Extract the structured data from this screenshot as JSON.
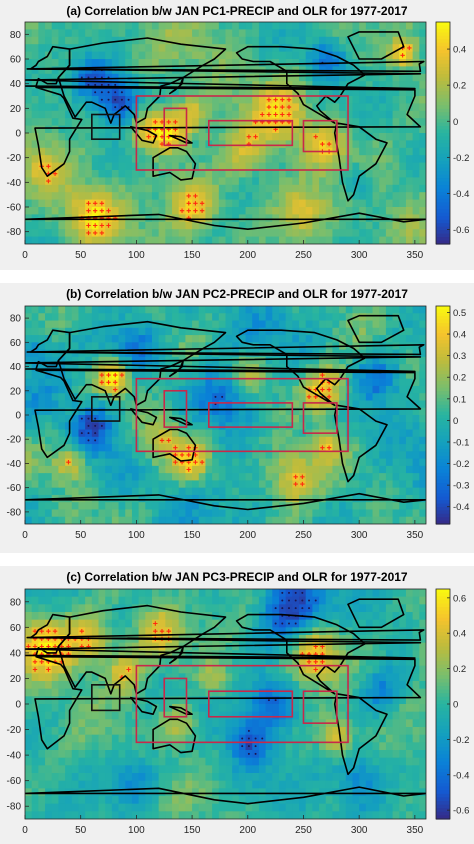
{
  "chart_data": [
    {
      "type": "heatmap",
      "title": "(a) Correlation b/w JAN PC1-PRECIP and OLR for 1977-2017",
      "x_ticks": [
        0,
        50,
        100,
        150,
        200,
        250,
        300,
        350
      ],
      "y_ticks": [
        80,
        60,
        40,
        20,
        0,
        -20,
        -40,
        -60,
        -80
      ],
      "xlim": [
        0,
        360
      ],
      "ylim": [
        -90,
        90
      ],
      "colorbar": {
        "min": -0.68,
        "max": 0.55,
        "ticks": [
          0.4,
          0.2,
          0,
          -0.2,
          -0.4,
          -0.6
        ]
      },
      "seed": 11,
      "anomalies": [
        {
          "lon": 85,
          "lat": 25,
          "val": -0.65,
          "r": 14
        },
        {
          "lon": 60,
          "lat": 45,
          "val": -0.45,
          "r": 12
        },
        {
          "lon": 110,
          "lat": 5,
          "val": 0.5,
          "r": 12
        },
        {
          "lon": 130,
          "lat": 0,
          "val": 0.45,
          "r": 10
        },
        {
          "lon": 150,
          "lat": 15,
          "val": 0.35,
          "r": 10
        },
        {
          "lon": 230,
          "lat": 15,
          "val": 0.35,
          "r": 15
        },
        {
          "lon": 200,
          "lat": -15,
          "val": 0.3,
          "r": 15
        },
        {
          "lon": 270,
          "lat": -10,
          "val": 0.3,
          "r": 12
        },
        {
          "lon": 150,
          "lat": -60,
          "val": 0.45,
          "r": 15
        },
        {
          "lon": 60,
          "lat": -65,
          "val": 0.4,
          "r": 15
        },
        {
          "lon": 250,
          "lat": -65,
          "val": 0.35,
          "r": 15
        },
        {
          "lon": 300,
          "lat": -40,
          "val": -0.3,
          "r": 12
        },
        {
          "lon": 270,
          "lat": 60,
          "val": -0.4,
          "r": 12
        },
        {
          "lon": 20,
          "lat": -30,
          "val": 0.25,
          "r": 12
        },
        {
          "lon": 340,
          "lat": 65,
          "val": 0.5,
          "r": 8
        }
      ]
    },
    {
      "type": "heatmap",
      "title": "(b) Correlation b/w JAN PC2-PRECIP and OLR for 1977-2017",
      "x_ticks": [
        0,
        50,
        100,
        150,
        200,
        250,
        300,
        350
      ],
      "y_ticks": [
        80,
        60,
        40,
        20,
        0,
        -20,
        -40,
        -60,
        -80
      ],
      "xlim": [
        0,
        360
      ],
      "ylim": [
        -90,
        90
      ],
      "colorbar": {
        "min": -0.48,
        "max": 0.53,
        "ticks": [
          0.5,
          0.4,
          0.3,
          0.2,
          0.1,
          0,
          -0.1,
          -0.2,
          -0.3,
          -0.4
        ]
      },
      "seed": 23,
      "anomalies": [
        {
          "lon": 80,
          "lat": 30,
          "val": 0.5,
          "r": 10
        },
        {
          "lon": 270,
          "lat": 20,
          "val": 0.5,
          "r": 15
        },
        {
          "lon": 120,
          "lat": -20,
          "val": 0.35,
          "r": 15
        },
        {
          "lon": 150,
          "lat": -40,
          "val": 0.35,
          "r": 12
        },
        {
          "lon": 240,
          "lat": -50,
          "val": 0.35,
          "r": 15
        },
        {
          "lon": 270,
          "lat": -25,
          "val": 0.3,
          "r": 10
        },
        {
          "lon": 200,
          "lat": 35,
          "val": 0.25,
          "r": 12
        },
        {
          "lon": 180,
          "lat": 10,
          "val": -0.35,
          "r": 18
        },
        {
          "lon": 60,
          "lat": -10,
          "val": -0.35,
          "r": 12
        },
        {
          "lon": 100,
          "lat": 55,
          "val": -0.3,
          "r": 15
        },
        {
          "lon": 40,
          "lat": -40,
          "val": 0.35,
          "r": 10
        },
        {
          "lon": 320,
          "lat": 30,
          "val": -0.25,
          "r": 12
        },
        {
          "lon": 10,
          "lat": 55,
          "val": -0.2,
          "r": 10
        }
      ]
    },
    {
      "type": "heatmap",
      "title": "(c) Correlation b/w JAN PC3-PRECIP and OLR for 1977-2017",
      "x_ticks": [
        0,
        50,
        100,
        150,
        200,
        250,
        300,
        350
      ],
      "y_ticks": [
        80,
        60,
        40,
        20,
        0,
        -20,
        -40,
        -60,
        -80
      ],
      "xlim": [
        0,
        360
      ],
      "ylim": [
        -90,
        90
      ],
      "colorbar": {
        "min": -0.65,
        "max": 0.65,
        "ticks": [
          0.6,
          0.4,
          0.2,
          0,
          -0.2,
          -0.4,
          -0.6
        ]
      },
      "seed": 37,
      "anomalies": [
        {
          "lon": 20,
          "lat": 45,
          "val": 0.55,
          "r": 18
        },
        {
          "lon": 60,
          "lat": 50,
          "val": 0.5,
          "r": 14
        },
        {
          "lon": 120,
          "lat": 55,
          "val": 0.45,
          "r": 15
        },
        {
          "lon": 90,
          "lat": 25,
          "val": 0.45,
          "r": 12
        },
        {
          "lon": 260,
          "lat": 40,
          "val": 0.55,
          "r": 15
        },
        {
          "lon": 240,
          "lat": 75,
          "val": -0.6,
          "r": 20
        },
        {
          "lon": 220,
          "lat": 0,
          "val": -0.5,
          "r": 15
        },
        {
          "lon": 140,
          "lat": -15,
          "val": 0.4,
          "r": 12
        },
        {
          "lon": 200,
          "lat": -30,
          "val": -0.45,
          "r": 12
        },
        {
          "lon": 280,
          "lat": -25,
          "val": 0.45,
          "r": 10
        },
        {
          "lon": 300,
          "lat": -60,
          "val": -0.35,
          "r": 15
        },
        {
          "lon": 100,
          "lat": -60,
          "val": -0.3,
          "r": 15
        },
        {
          "lon": 170,
          "lat": 20,
          "val": 0.3,
          "r": 10
        },
        {
          "lon": 320,
          "lat": 10,
          "val": -0.3,
          "r": 12
        }
      ]
    }
  ]
}
